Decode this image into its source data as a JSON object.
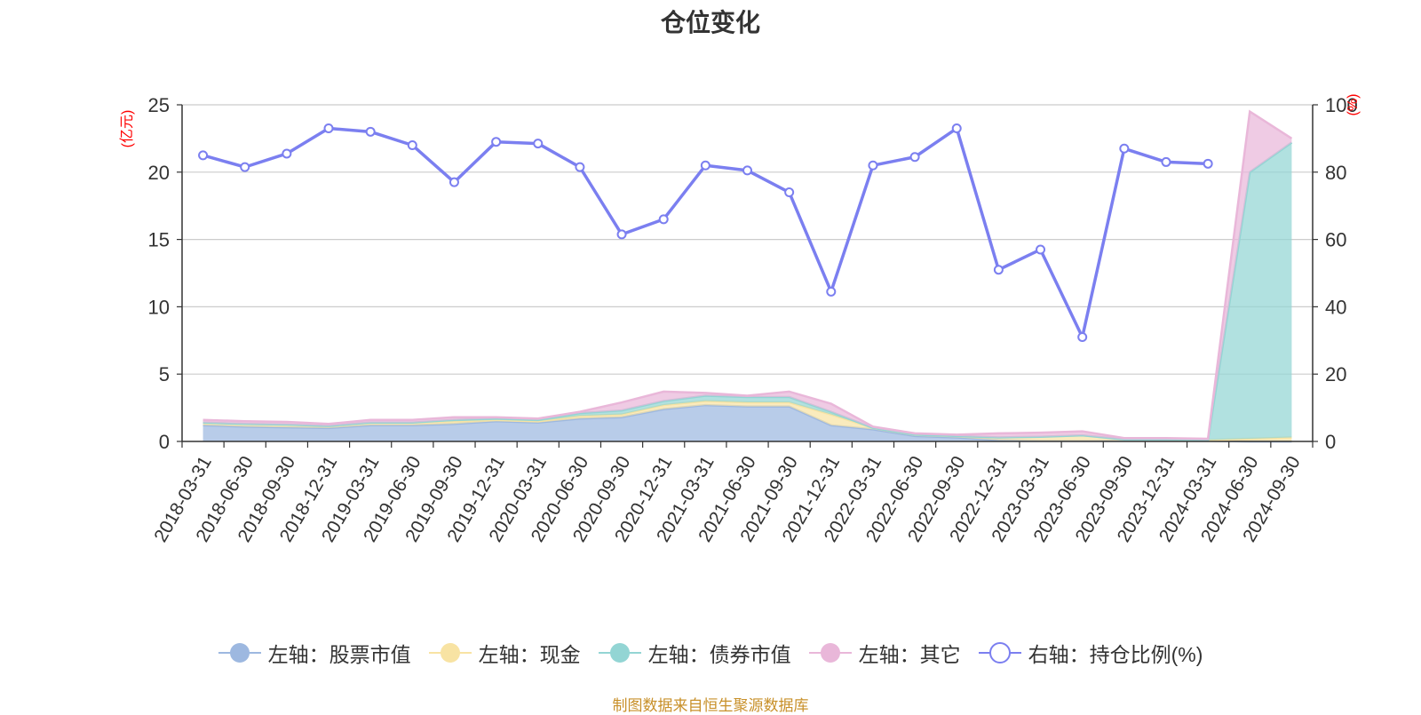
{
  "chart_data": {
    "type": "area",
    "title": "仓位变化",
    "left_axis_unit": "(亿元)",
    "right_axis_unit": "(%)",
    "categories": [
      "2018-03-31",
      "2018-06-30",
      "2018-09-30",
      "2018-12-31",
      "2019-03-31",
      "2019-06-30",
      "2019-09-30",
      "2019-12-31",
      "2020-03-31",
      "2020-06-30",
      "2020-09-30",
      "2020-12-31",
      "2021-03-31",
      "2021-06-30",
      "2021-09-30",
      "2021-12-31",
      "2022-03-31",
      "2022-06-30",
      "2022-09-30",
      "2022-12-31",
      "2023-03-31",
      "2023-06-30",
      "2023-09-30",
      "2023-12-31",
      "2024-03-31",
      "2024-06-30",
      "2024-09-30"
    ],
    "ylim_left": [
      0,
      25
    ],
    "yticks_left": [
      0,
      5,
      10,
      15,
      20,
      25
    ],
    "ylim_right": [
      0,
      100
    ],
    "yticks_right": [
      0,
      20,
      40,
      60,
      80,
      100
    ],
    "grid": true,
    "legend_position": "bottom",
    "series": [
      {
        "name": "左轴：股票市值",
        "axis": "left",
        "kind": "stacked-area",
        "color": "#9db8e0",
        "values": [
          1.2,
          1.1,
          1.05,
          1.0,
          1.2,
          1.2,
          1.3,
          1.5,
          1.4,
          1.7,
          1.8,
          2.4,
          2.7,
          2.6,
          2.6,
          1.2,
          0.9,
          0.4,
          0.3,
          0.1,
          0.05,
          0.05,
          0.05,
          0.05,
          0.05,
          0.0,
          0.0
        ]
      },
      {
        "name": "左轴：现金",
        "axis": "left",
        "kind": "stacked-area",
        "color": "#f8e3a3",
        "values": [
          0.2,
          0.2,
          0.2,
          0.15,
          0.2,
          0.2,
          0.2,
          0.1,
          0.1,
          0.2,
          0.2,
          0.3,
          0.3,
          0.3,
          0.3,
          0.8,
          0.1,
          0.1,
          0.1,
          0.2,
          0.3,
          0.4,
          0.1,
          0.1,
          0.05,
          0.2,
          0.3
        ]
      },
      {
        "name": "左轴：债券市值",
        "axis": "left",
        "kind": "stacked-area",
        "color": "#93d5d4",
        "values": [
          0.0,
          0.0,
          0.0,
          0.0,
          0.0,
          0.0,
          0.1,
          0.1,
          0.1,
          0.2,
          0.3,
          0.3,
          0.4,
          0.4,
          0.4,
          0.2,
          0.0,
          0.0,
          0.0,
          0.0,
          0.0,
          0.0,
          0.0,
          0.0,
          0.0,
          19.8,
          21.9
        ]
      },
      {
        "name": "左轴：其它",
        "axis": "left",
        "kind": "stacked-area",
        "color": "#e9b7d9",
        "values": [
          0.2,
          0.2,
          0.2,
          0.15,
          0.2,
          0.2,
          0.2,
          0.1,
          0.1,
          0.1,
          0.6,
          0.7,
          0.2,
          0.1,
          0.4,
          0.6,
          0.1,
          0.1,
          0.1,
          0.3,
          0.3,
          0.3,
          0.1,
          0.1,
          0.1,
          4.5,
          0.3
        ]
      },
      {
        "name": "右轴：持仓比例(%)",
        "axis": "right",
        "kind": "line",
        "color": "#7b7ff0",
        "values": [
          85,
          81.5,
          85.5,
          93,
          92,
          88,
          77,
          89,
          88.5,
          81.5,
          61.5,
          66,
          82,
          80.5,
          74,
          44.5,
          82,
          84.5,
          93,
          51,
          57,
          31,
          87,
          83,
          82.5,
          null,
          null
        ]
      }
    ]
  },
  "source_note": "制图数据来自恒生聚源数据库"
}
